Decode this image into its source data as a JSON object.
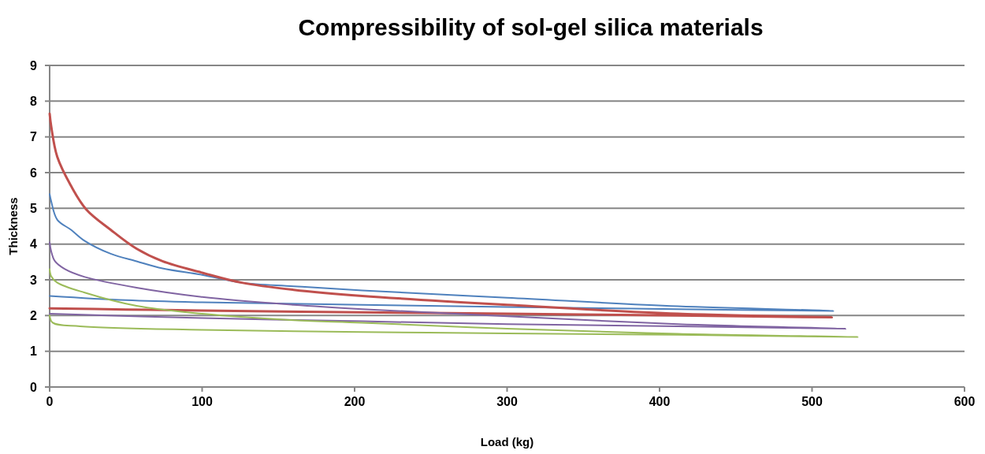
{
  "chart_data": {
    "type": "line",
    "title": "Compressibility of sol-gel silica materials",
    "xlabel": "Load (kg)",
    "ylabel": "Thickness",
    "xlim": [
      0,
      600
    ],
    "xticks": [
      0,
      100,
      200,
      300,
      400,
      500,
      600
    ],
    "ylim": [
      0,
      9
    ],
    "yticks": [
      0,
      1,
      2,
      3,
      4,
      5,
      6,
      7,
      8,
      9
    ],
    "grid": "y",
    "marker": "none",
    "line_style": "solid",
    "series": [
      {
        "color": "#4f81bd",
        "x": [
          0,
          1,
          5,
          14,
          23,
          40,
          57,
          74,
          100,
          126,
          160,
          205,
          300,
          412,
          514,
          412,
          300,
          205,
          100,
          50,
          0
        ],
        "values": [
          5.4,
          5.2,
          4.68,
          4.4,
          4.09,
          3.73,
          3.52,
          3.32,
          3.14,
          2.92,
          2.82,
          2.7,
          2.5,
          2.26,
          2.13,
          2.18,
          2.24,
          2.3,
          2.37,
          2.43,
          2.55
        ]
      },
      {
        "color": "#c0504d",
        "x": [
          0,
          1,
          5,
          14,
          24,
          40,
          57,
          74,
          100,
          126,
          160,
          205,
          300,
          412,
          513,
          412,
          300,
          205,
          100,
          50,
          0
        ],
        "values": [
          7.65,
          7.3,
          6.44,
          5.63,
          4.97,
          4.4,
          3.87,
          3.52,
          3.2,
          2.92,
          2.72,
          2.55,
          2.3,
          2.05,
          1.95,
          2.0,
          2.05,
          2.09,
          2.14,
          2.17,
          2.2
        ]
      },
      {
        "color": "#8064a2",
        "x": [
          0,
          1,
          3.5,
          10,
          23,
          57,
          100,
          160,
          205,
          300,
          412,
          522,
          412,
          300,
          205,
          100,
          0
        ],
        "values": [
          4.05,
          3.8,
          3.52,
          3.3,
          3.08,
          2.78,
          2.52,
          2.3,
          2.18,
          1.98,
          1.76,
          1.63,
          1.7,
          1.76,
          1.84,
          1.93,
          2.05
        ]
      },
      {
        "color": "#9bbb59",
        "x": [
          0,
          1,
          5,
          23,
          57,
          100,
          160,
          205,
          300,
          412,
          530,
          412,
          300,
          205,
          100,
          20,
          2,
          0
        ],
        "values": [
          3.3,
          3.1,
          2.92,
          2.64,
          2.27,
          2.05,
          1.87,
          1.8,
          1.63,
          1.49,
          1.4,
          1.46,
          1.5,
          1.54,
          1.6,
          1.7,
          1.8,
          2.0
        ]
      }
    ]
  }
}
